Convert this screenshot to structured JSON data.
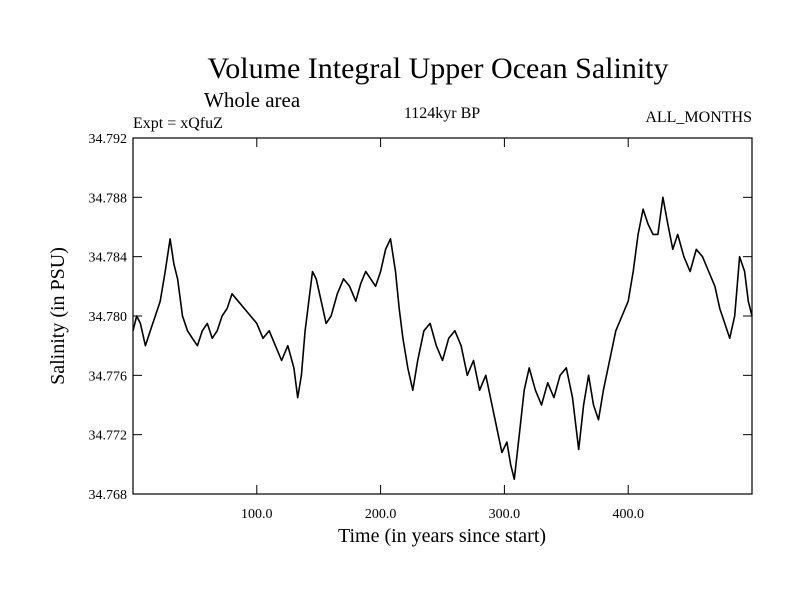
{
  "chart_data": {
    "type": "line",
    "title": "Volume Integral Upper Ocean Salinity",
    "subtitle": "Whole area",
    "experiment_label": "Expt = xQfuZ",
    "period_label": "1124kyr BP",
    "months_label": "ALL_MONTHS",
    "xlabel": "Time (in years since start)",
    "ylabel": "Salinity (in PSU)",
    "xlim": [
      0,
      500
    ],
    "ylim": [
      34.768,
      34.792
    ],
    "x_ticks": [
      100,
      200,
      300,
      400
    ],
    "x_tick_labels": [
      "100.0",
      "200.0",
      "300.0",
      "400.0"
    ],
    "y_ticks": [
      34.768,
      34.772,
      34.776,
      34.78,
      34.784,
      34.788,
      34.792
    ],
    "y_tick_labels": [
      "34.768",
      "34.772",
      "34.776",
      "34.780",
      "34.784",
      "34.788",
      "34.792"
    ],
    "grid": false,
    "series": [
      {
        "name": "Volume integral upper ocean salinity",
        "color": "#000000",
        "x": [
          0,
          3,
          6,
          10,
          14,
          18,
          22,
          26,
          30,
          33,
          36,
          40,
          44,
          48,
          52,
          56,
          60,
          64,
          68,
          72,
          76,
          80,
          85,
          90,
          95,
          100,
          105,
          110,
          115,
          120,
          125,
          130,
          133,
          136,
          139,
          142,
          145,
          148,
          152,
          156,
          160,
          165,
          170,
          175,
          180,
          184,
          188,
          192,
          196,
          200,
          204,
          208,
          212,
          215,
          218,
          222,
          226,
          230,
          235,
          240,
          245,
          250,
          255,
          260,
          265,
          270,
          275,
          280,
          285,
          290,
          295,
          298,
          302,
          305,
          308,
          312,
          316,
          320,
          325,
          330,
          335,
          340,
          345,
          350,
          355,
          360,
          364,
          368,
          372,
          376,
          380,
          385,
          390,
          395,
          400,
          404,
          408,
          412,
          416,
          420,
          424,
          428,
          432,
          436,
          440,
          445,
          450,
          455,
          460,
          465,
          470,
          474,
          478,
          482,
          486,
          490,
          494,
          497,
          500
        ],
        "y": [
          34.779,
          34.78,
          34.7795,
          34.778,
          34.779,
          34.78,
          34.781,
          34.783,
          34.7852,
          34.7835,
          34.7825,
          34.78,
          34.779,
          34.7785,
          34.778,
          34.779,
          34.7795,
          34.7785,
          34.779,
          34.78,
          34.7805,
          34.7815,
          34.781,
          34.7805,
          34.78,
          34.7795,
          34.7785,
          34.779,
          34.778,
          34.777,
          34.778,
          34.7765,
          34.7745,
          34.776,
          34.779,
          34.781,
          34.783,
          34.7825,
          34.781,
          34.7795,
          34.78,
          34.7815,
          34.7825,
          34.782,
          34.781,
          34.7822,
          34.783,
          34.7825,
          34.782,
          34.783,
          34.7845,
          34.7852,
          34.783,
          34.7805,
          34.7785,
          34.7765,
          34.775,
          34.777,
          34.779,
          34.7795,
          34.778,
          34.777,
          34.7785,
          34.779,
          34.778,
          34.776,
          34.777,
          34.775,
          34.776,
          34.774,
          34.772,
          34.7708,
          34.7715,
          34.77,
          34.769,
          34.772,
          34.775,
          34.7765,
          34.775,
          34.774,
          34.7755,
          34.7745,
          34.776,
          34.7765,
          34.7745,
          34.771,
          34.774,
          34.776,
          34.774,
          34.773,
          34.775,
          34.777,
          34.779,
          34.78,
          34.781,
          34.783,
          34.7855,
          34.7872,
          34.7862,
          34.7855,
          34.7855,
          34.788,
          34.7862,
          34.7845,
          34.7855,
          34.784,
          34.783,
          34.7845,
          34.784,
          34.783,
          34.782,
          34.7805,
          34.7795,
          34.7785,
          34.78,
          34.784,
          34.783,
          34.781,
          34.78
        ]
      }
    ]
  }
}
